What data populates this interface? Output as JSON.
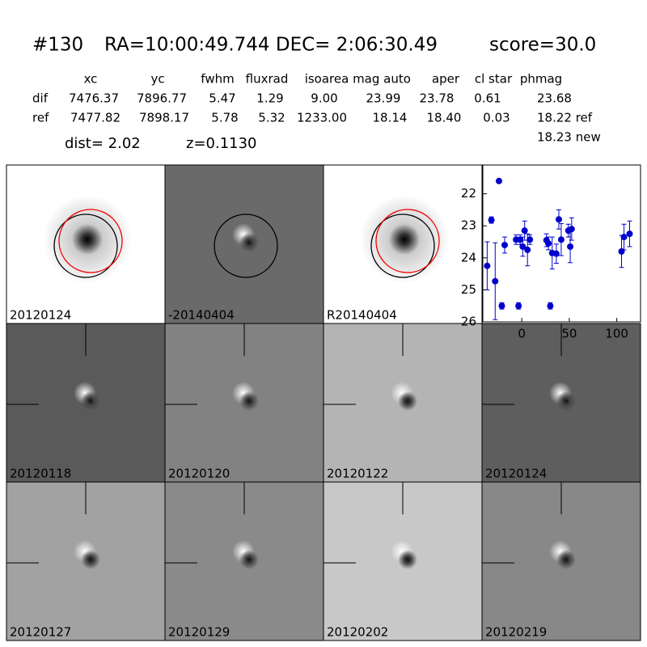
{
  "header": {
    "id": "#130",
    "coords": "RA=10:00:49.744 DEC= 2:06:30.49",
    "score": "score=30.0"
  },
  "table": {
    "columns": [
      "xc",
      "yc",
      "fwhm",
      "fluxrad",
      "isoarea",
      "mag auto",
      "aper",
      "cl star",
      "phmag"
    ],
    "rows": [
      [
        "dif",
        "7476.37",
        "7896.77",
        "5.47",
        "1.29",
        "9.00",
        "23.99",
        "23.78",
        "0.61",
        "23.68"
      ],
      [
        "ref",
        "7477.82",
        "7898.17",
        "5.78",
        "5.32",
        "1233.00",
        "18.14",
        "18.40",
        "0.03",
        "18.22 ref"
      ]
    ],
    "extra": "18.23 new"
  },
  "info": {
    "dist": "dist=  2.02",
    "z": "z=0.1130"
  },
  "stamps": [
    "20120124",
    "-20140404",
    "R20140404",
    "20120118",
    "20120120",
    "20120122",
    "20120124",
    "20120127",
    "20120129",
    "20120202",
    "20120219"
  ],
  "chart_data": {
    "type": "scatter",
    "x": [
      -36.4,
      -32,
      -28,
      -24,
      -21,
      -18,
      -6,
      -3.4,
      -1.7,
      1,
      3,
      6,
      8.5,
      26,
      28,
      30,
      32,
      36.4,
      39,
      41.5,
      49,
      51,
      52.5,
      105,
      107.6,
      113.5
    ],
    "series": [
      {
        "color": "#0000cc",
        "values": [
          24.25,
          22.82,
          24.73,
          21.6,
          25.5,
          23.6,
          23.43,
          25.5,
          23.43,
          23.65,
          23.15,
          23.75,
          23.43,
          23.45,
          23.55,
          25.5,
          23.85,
          23.87,
          22.8,
          23.43,
          23.15,
          23.65,
          23.1,
          23.8,
          23.35,
          23.25
        ],
        "errors": [
          0.75,
          0.1,
          1.2,
          0.05,
          0.1,
          0.25,
          0.15,
          0.1,
          0.15,
          0.3,
          0.3,
          0.5,
          0.15,
          0.2,
          0.2,
          0.1,
          0.5,
          0.3,
          0.3,
          0.5,
          0.2,
          0.5,
          0.35,
          0.5,
          0.4,
          0.4
        ]
      }
    ],
    "xlim": [
      -41,
      125
    ],
    "ylim": [
      26,
      21.1
    ],
    "xticks": [
      0,
      50,
      100
    ],
    "yticks": [
      22,
      23,
      24,
      25,
      26
    ]
  }
}
